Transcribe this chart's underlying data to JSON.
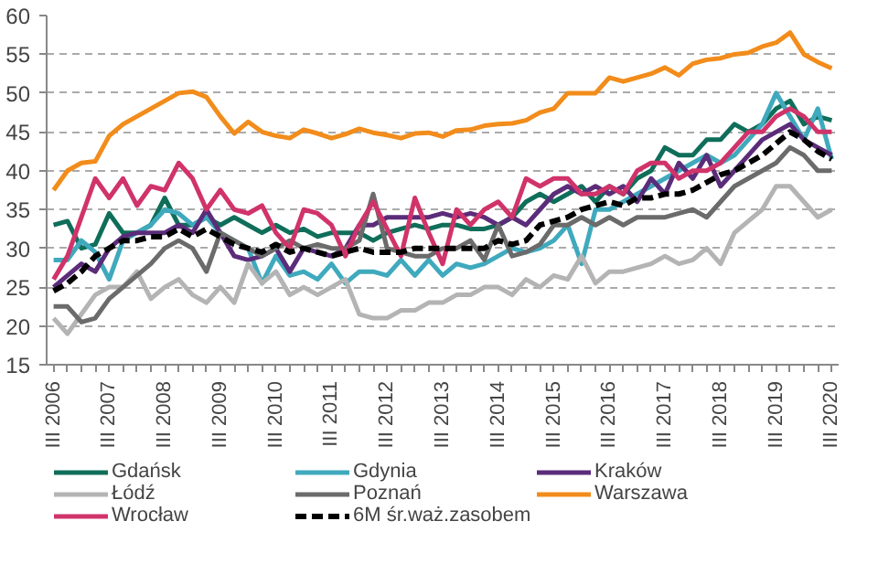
{
  "chart_data": {
    "type": "line",
    "categories": [
      "III 2006",
      null,
      null,
      null,
      "III 2007",
      null,
      null,
      null,
      "III 2008",
      null,
      null,
      null,
      "III 2009",
      null,
      null,
      null,
      "III 2010",
      null,
      null,
      null,
      "III 2011",
      null,
      null,
      null,
      "III 2012",
      null,
      null,
      null,
      "III 2013",
      null,
      null,
      null,
      "III 2014",
      null,
      null,
      null,
      "III 2015",
      null,
      null,
      null,
      "III 2016",
      null,
      null,
      null,
      "III 2017",
      null,
      null,
      null,
      "III 2018",
      null,
      null,
      null,
      "III 2019",
      null,
      null,
      null,
      "III 2020"
    ],
    "ylim": [
      15,
      60
    ],
    "yticks": [
      15,
      20,
      25,
      30,
      35,
      40,
      45,
      50,
      55,
      60
    ],
    "grid": "y",
    "legend": "bottom",
    "line_style": "solid",
    "series": [
      {
        "name": "Gdańsk",
        "color": "#0f6e5a",
        "values": [
          33,
          33.5,
          30,
          30.5,
          34.5,
          32,
          32,
          33,
          36.5,
          33,
          33,
          34,
          33,
          34,
          33,
          32,
          33,
          32,
          32.5,
          31.5,
          32,
          32,
          32,
          31,
          32,
          32.5,
          33,
          32.5,
          33,
          33,
          32.5,
          32.5,
          33,
          34,
          36,
          37,
          36,
          37,
          38,
          36,
          38,
          37,
          39,
          40,
          43,
          42,
          42,
          44,
          44,
          46,
          45,
          46,
          48,
          49,
          46,
          47,
          46.5
        ]
      },
      {
        "name": "Gdynia",
        "color": "#3fa9bd",
        "values": [
          28.5,
          28.5,
          31,
          29.5,
          26,
          31,
          32,
          33,
          35,
          34.5,
          33,
          34,
          32,
          31,
          30,
          25.5,
          29,
          26.5,
          27,
          26,
          28,
          25.5,
          27,
          27,
          26.5,
          28.5,
          26.5,
          28.5,
          26.5,
          28,
          27.5,
          28,
          29,
          30,
          29.5,
          30,
          31,
          33,
          28,
          35,
          35,
          36,
          37,
          38,
          39,
          40,
          41,
          42,
          41,
          42,
          44,
          46,
          50,
          47,
          44,
          48,
          41.5
        ]
      },
      {
        "name": "Kraków",
        "color": "#5b2c7a",
        "values": [
          25,
          26.5,
          28,
          27,
          30,
          31.5,
          32,
          32,
          32,
          33,
          32,
          35,
          32,
          29,
          28.5,
          29,
          30,
          27,
          30,
          29.5,
          29,
          30,
          33,
          33,
          34,
          34,
          34,
          34,
          34.5,
          34,
          34.5,
          34,
          33,
          34,
          33,
          35,
          37,
          38,
          37,
          38,
          37,
          38,
          36,
          39,
          37,
          41,
          39,
          42,
          38,
          40,
          42,
          44,
          45,
          46,
          44,
          43,
          42
        ]
      },
      {
        "name": "Łódź",
        "color": "#b4b4b4",
        "values": [
          21,
          19,
          21.5,
          24,
          25,
          25,
          27,
          23.5,
          25,
          26,
          24,
          23,
          25,
          23,
          28,
          25.5,
          27,
          24,
          25,
          24,
          25,
          26,
          21.5,
          21,
          21,
          22,
          22,
          23,
          23,
          24,
          24,
          25,
          25,
          24,
          26,
          25,
          26.5,
          26,
          29,
          25.5,
          27,
          27,
          27.5,
          28,
          29,
          28,
          28.5,
          30,
          28,
          32,
          33.5,
          35,
          38,
          38,
          36,
          34,
          35
        ]
      },
      {
        "name": "Poznań",
        "color": "#6b6b6b",
        "values": [
          22.5,
          22.5,
          20.5,
          21,
          23.5,
          25,
          26.5,
          28,
          30,
          31,
          30,
          27,
          32,
          31,
          30,
          29,
          30,
          31,
          30,
          30.5,
          30,
          30,
          31,
          37,
          30,
          29.5,
          29,
          29,
          30,
          30,
          31,
          28.5,
          33,
          29,
          29.5,
          30.5,
          33,
          33,
          34,
          33,
          34,
          33,
          34,
          34,
          34,
          34.5,
          35,
          34,
          36,
          38,
          39,
          40,
          41,
          43,
          42,
          40,
          40
        ]
      },
      {
        "name": "Warszawa",
        "color": "#f28c1b",
        "values": [
          37.5,
          40,
          41,
          41.2,
          44.5,
          46,
          47,
          48,
          49,
          50,
          50.2,
          49.5,
          47,
          44.8,
          46.3,
          45,
          44.5,
          44.2,
          45.3,
          44.8,
          44.2,
          44.7,
          45.4,
          44.9,
          44.6,
          44.2,
          44.8,
          44.9,
          44.4,
          45.2,
          45.3,
          45.8,
          46,
          46.1,
          46.5,
          47.5,
          48,
          50,
          50,
          50,
          52,
          51.5,
          52,
          52.5,
          53.3,
          52.3,
          53.8,
          54.3,
          54.5,
          55,
          55.2,
          56,
          56.5,
          57.8,
          55,
          54,
          53.2
        ]
      },
      {
        "name": "Wrocław",
        "color": "#d0336a",
        "values": [
          26,
          29,
          34,
          39,
          36.5,
          39,
          35.5,
          38,
          37.5,
          41,
          39,
          35,
          37.5,
          35,
          34.5,
          35.5,
          32,
          30,
          35,
          34.5,
          33,
          29,
          33,
          36,
          32.5,
          29,
          36.5,
          32,
          28,
          35,
          33,
          35,
          36,
          34,
          39,
          38,
          39,
          39,
          37,
          37,
          38,
          37,
          40,
          41,
          41,
          39,
          40,
          40,
          41,
          43,
          45,
          45,
          47,
          48,
          47,
          45,
          45
        ]
      },
      {
        "name": "6M śr.waż.zasobem",
        "color": "#000000",
        "line_style": "dashed",
        "values": [
          24.5,
          25.5,
          27,
          29,
          30,
          31,
          31,
          31.5,
          31.5,
          32.5,
          31.5,
          32.5,
          31.5,
          30.5,
          30,
          29.5,
          30.5,
          29.5,
          30,
          29.5,
          29,
          29.5,
          30,
          29.5,
          29.5,
          29.5,
          30,
          30,
          30,
          30,
          30,
          30,
          31,
          30.5,
          31,
          33,
          33.5,
          34,
          35,
          35.5,
          36,
          35.5,
          36.5,
          36.5,
          37,
          37,
          37.5,
          38.5,
          39.5,
          40,
          41,
          42,
          43.5,
          45,
          44,
          42.5,
          41.5
        ]
      }
    ]
  }
}
